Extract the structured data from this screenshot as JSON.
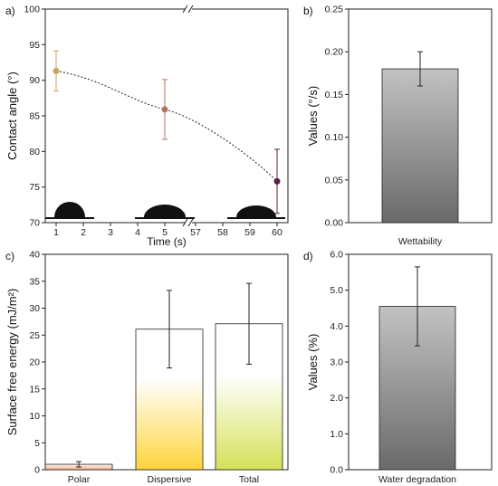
{
  "chart_data": [
    {
      "panel_label": "a)",
      "type": "scatter",
      "xlabel": "Time (s)",
      "ylabel": "Contact angle (°)",
      "ylim": [
        70,
        100
      ],
      "y_ticks": [
        "70",
        "75",
        "80",
        "85",
        "90",
        "95",
        "100"
      ],
      "x_ticks": [
        "1",
        "2",
        "3",
        "4",
        "5",
        "57",
        "58",
        "59",
        "60"
      ],
      "x_break": "5–57",
      "points": [
        {
          "x": 1,
          "y": 91.3,
          "err": 2.8,
          "color": "#c9a45a"
        },
        {
          "x": 5,
          "y": 85.9,
          "err": 4.2,
          "color": "#b07462"
        },
        {
          "x": 60,
          "y": 75.8,
          "err": 4.5,
          "color": "#5a1f4a"
        }
      ],
      "trend_line": "dotted",
      "droplet_icons": 3
    },
    {
      "panel_label": "b)",
      "type": "bar",
      "categories": [
        "Wettability"
      ],
      "values": [
        0.18
      ],
      "errors": [
        0.02
      ],
      "ylabel": "Values (°/s)",
      "ylim": [
        0,
        0.25
      ],
      "y_ticks": [
        "0.00",
        "0.05",
        "0.10",
        "0.15",
        "0.20",
        "0.25"
      ],
      "fill": "gray-gradient"
    },
    {
      "panel_label": "c)",
      "type": "bar",
      "categories": [
        "Polar",
        "Dispersive",
        "Total"
      ],
      "values": [
        1.0,
        26.1,
        27.1
      ],
      "errors": [
        0.5,
        7.2,
        7.5
      ],
      "ylabel": "Surface free energy (mJ/m²)",
      "ylim": [
        0,
        40
      ],
      "y_ticks": [
        "0",
        "5",
        "10",
        "15",
        "20",
        "25",
        "30",
        "35",
        "40"
      ],
      "bar_colors": [
        "#f5a87a",
        "#ffd43b",
        "#d4e157"
      ]
    },
    {
      "panel_label": "d)",
      "type": "bar",
      "categories": [
        "Water degradation"
      ],
      "values": [
        4.55
      ],
      "errors": [
        1.1
      ],
      "ylabel": "Values (%)",
      "ylim": [
        0,
        6.0
      ],
      "y_ticks": [
        "0.0",
        "1.0",
        "2.0",
        "3.0",
        "4.0",
        "5.0",
        "6.0"
      ],
      "fill": "gray-gradient"
    }
  ]
}
